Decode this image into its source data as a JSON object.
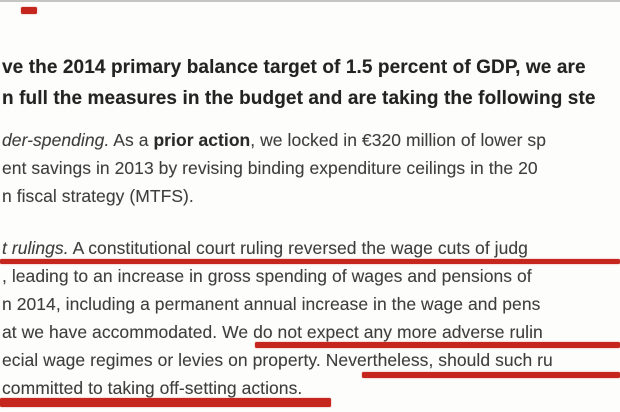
{
  "page": {
    "background": "#fdfdfb",
    "text_color": "#3e3e3e",
    "heading_color": "#232323"
  },
  "annotations": {
    "color": "#c5271f",
    "marks": [
      {
        "name": "red-dash-top-left",
        "type": "pen-dash"
      },
      {
        "name": "underline-court-ruling-line",
        "type": "underline",
        "under_text": "t rulings. A constitutional court ruling reversed the wage cuts of judg"
      },
      {
        "name": "underline-no-more-adverse-rulings",
        "type": "underline",
        "under_text": "We do not expect any more adverse rulin"
      },
      {
        "name": "underline-nevertheless-should-such",
        "type": "underline",
        "under_text": "Nevertheless, should such ru"
      },
      {
        "name": "underline-offsetting-actions",
        "type": "underline",
        "under_text": "committed to taking off-setting actions."
      }
    ]
  },
  "document": {
    "heading": {
      "lines": [
        [
          {
            "t": "ve the 2014 primary balance target of 1.5 percent of GDP, we are",
            "s": ""
          }
        ],
        [
          {
            "t": "n full the measures in the budget and are taking the following ste",
            "s": ""
          }
        ]
      ]
    },
    "paragraph_underspending": {
      "lines": [
        [
          {
            "t": "der-spending.",
            "s": "i"
          },
          {
            "t": " As a ",
            "s": ""
          },
          {
            "t": "prior action",
            "s": "b"
          },
          {
            "t": ", we locked in €320 million of lower sp",
            "s": ""
          }
        ],
        [
          {
            "t": "ent savings in 2013 by revising binding expenditure ceilings in the 20",
            "s": ""
          }
        ],
        [
          {
            "t": "n fiscal strategy (MTFS).",
            "s": ""
          }
        ]
      ]
    },
    "paragraph_court_rulings": {
      "lines": [
        [
          {
            "t": "t rulings.",
            "s": "i"
          },
          {
            "t": " A constitutional court ruling reversed the wage cuts of judg",
            "s": ""
          }
        ],
        [
          {
            "t": ", leading to an increase in gross spending of wages and pensions of",
            "s": ""
          }
        ],
        [
          {
            "t": "n 2014, including a permanent annual increase in the wage and pens",
            "s": ""
          }
        ],
        [
          {
            "t": "at we have accommodated. We do not expect any more adverse rulin",
            "s": ""
          }
        ],
        [
          {
            "t": "ecial wage regimes or levies on property. Nevertheless, should such ru",
            "s": ""
          }
        ],
        [
          {
            "t": "committed to taking off-setting actions.",
            "s": ""
          }
        ]
      ]
    }
  }
}
